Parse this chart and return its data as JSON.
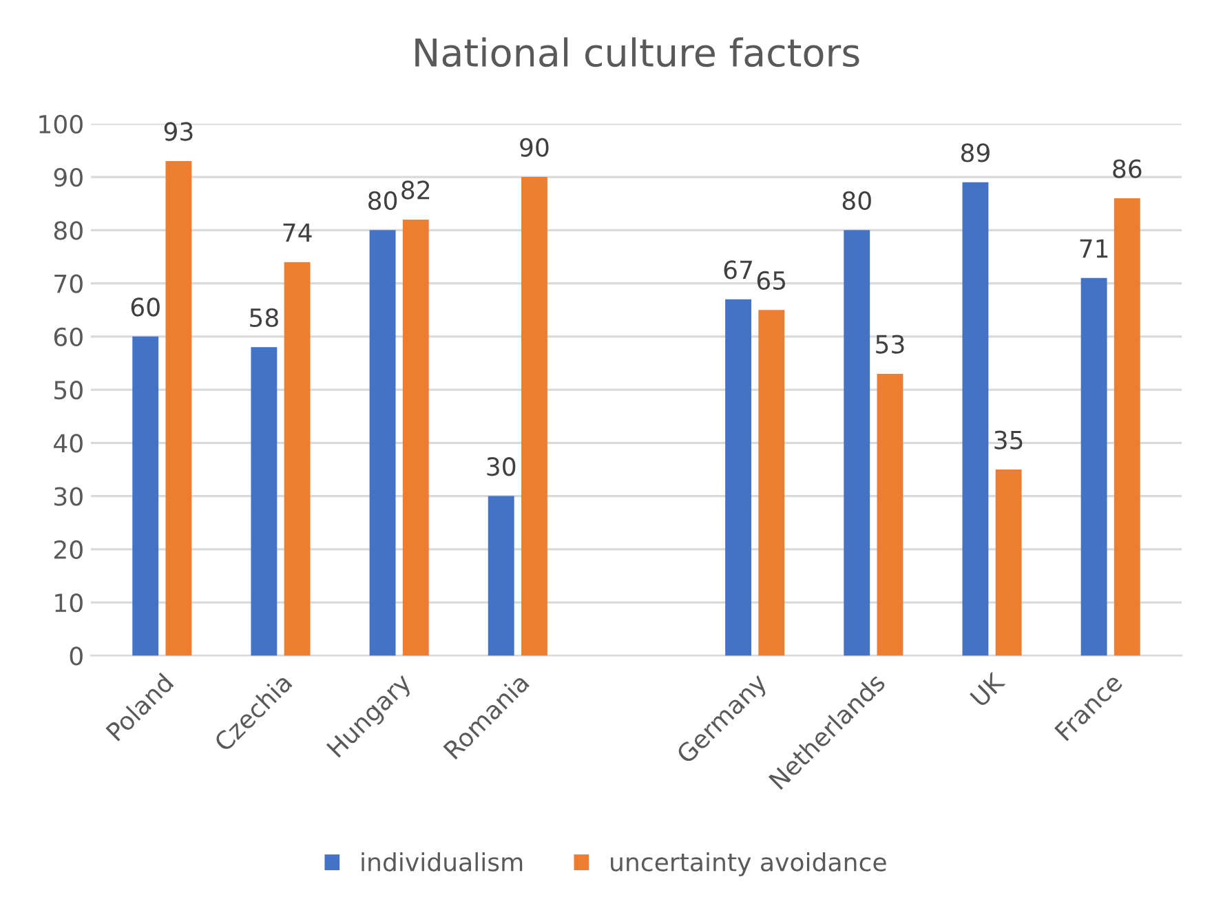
{
  "chart_data": {
    "type": "bar",
    "title": "National culture factors",
    "categories": [
      "Poland",
      "Czechia",
      "Hungary",
      "Romania",
      null,
      "Germany",
      "Netherlands",
      "UK",
      "France"
    ],
    "series": [
      {
        "name": "individualism",
        "color": "#4472c4",
        "values": [
          60,
          58,
          80,
          30,
          null,
          67,
          80,
          89,
          71
        ]
      },
      {
        "name": "uncertainty avoidance",
        "color": "#ed7d31",
        "values": [
          93,
          74,
          82,
          90,
          null,
          65,
          53,
          35,
          86
        ]
      }
    ],
    "ylim": [
      0,
      100
    ],
    "yticks": [
      0,
      10,
      20,
      30,
      40,
      50,
      60,
      70,
      80,
      90,
      100
    ],
    "grid": "y",
    "legend": "bottom",
    "data_labels": true
  }
}
